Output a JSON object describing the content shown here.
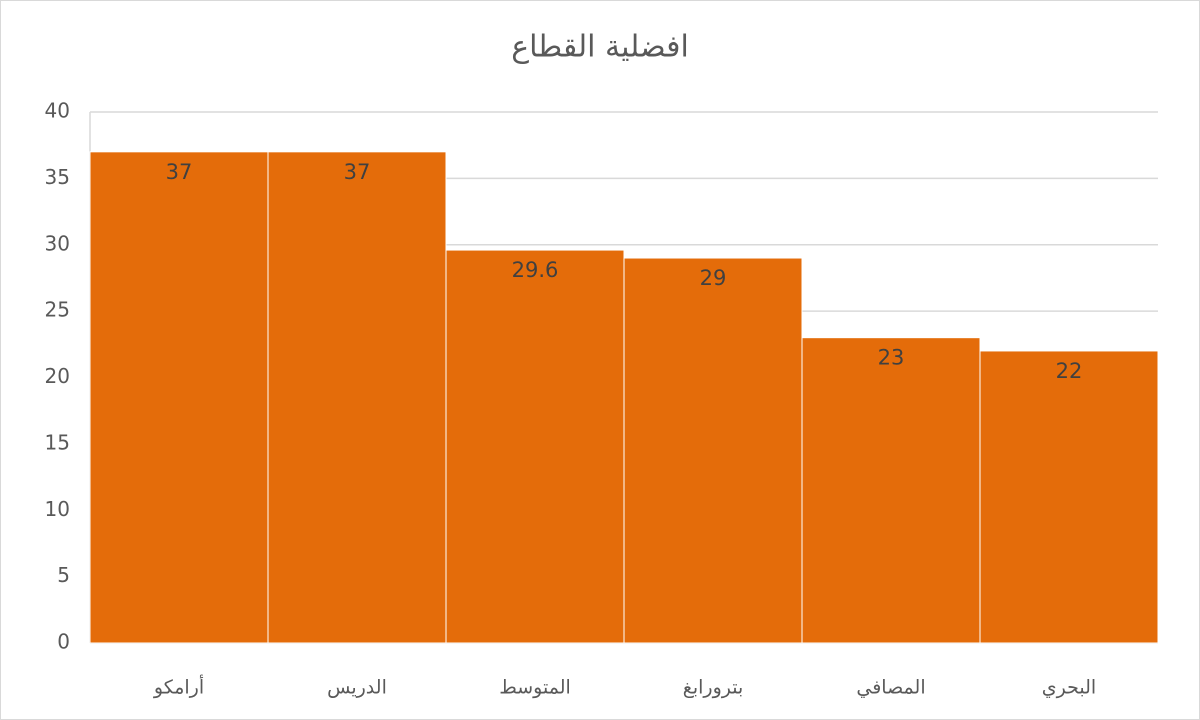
{
  "chart_data": {
    "type": "bar",
    "title": "افضلية القطاع",
    "categories": [
      "أرامكو",
      "الدريس",
      "المتوسط",
      "بترورابغ",
      "المصافي",
      "البحري"
    ],
    "values": [
      37,
      37,
      29.6,
      29,
      23,
      22
    ],
    "color": "#e46c0a",
    "ylim": [
      0,
      40
    ],
    "yticks": [
      0,
      5,
      10,
      15,
      20,
      25,
      30,
      35,
      40
    ],
    "grid": true
  }
}
